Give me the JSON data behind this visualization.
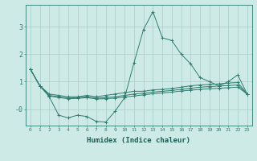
{
  "xlabel": "Humidex (Indice chaleur)",
  "x": [
    0,
    1,
    2,
    3,
    4,
    5,
    6,
    7,
    8,
    9,
    10,
    11,
    12,
    13,
    14,
    15,
    16,
    17,
    18,
    19,
    20,
    21,
    22,
    23
  ],
  "lines": [
    [
      1.45,
      0.85,
      0.45,
      -0.22,
      -0.32,
      -0.22,
      -0.27,
      -0.45,
      -0.47,
      -0.07,
      0.42,
      1.7,
      2.9,
      3.55,
      2.6,
      2.5,
      2.0,
      1.65,
      1.15,
      1.0,
      0.85,
      1.0,
      1.25,
      0.55
    ],
    [
      1.45,
      0.85,
      0.55,
      0.5,
      0.45,
      0.45,
      0.5,
      0.45,
      0.5,
      0.55,
      0.6,
      0.65,
      0.65,
      0.7,
      0.72,
      0.75,
      0.8,
      0.85,
      0.88,
      0.9,
      0.92,
      0.95,
      0.97,
      0.55
    ],
    [
      1.45,
      0.85,
      0.5,
      0.45,
      0.4,
      0.42,
      0.45,
      0.4,
      0.42,
      0.45,
      0.5,
      0.55,
      0.58,
      0.62,
      0.65,
      0.68,
      0.72,
      0.76,
      0.8,
      0.82,
      0.84,
      0.86,
      0.88,
      0.55
    ],
    [
      1.45,
      0.85,
      0.48,
      0.42,
      0.38,
      0.39,
      0.42,
      0.37,
      0.38,
      0.4,
      0.44,
      0.48,
      0.52,
      0.56,
      0.59,
      0.62,
      0.66,
      0.69,
      0.72,
      0.74,
      0.76,
      0.78,
      0.8,
      0.55
    ]
  ],
  "line_color": "#2e7d71",
  "bg_color": "#ceeae6",
  "grid_color": "#a8cdc9",
  "tick_color": "#2e7d71",
  "label_color": "#1a5c54",
  "ylim": [
    -0.6,
    3.8
  ],
  "yticks": [
    0,
    1,
    2,
    3
  ],
  "ytick_labels": [
    "-0",
    "1",
    "2",
    "3"
  ],
  "xlim": [
    -0.5,
    23.5
  ],
  "figsize": [
    3.2,
    2.0
  ],
  "dpi": 100
}
